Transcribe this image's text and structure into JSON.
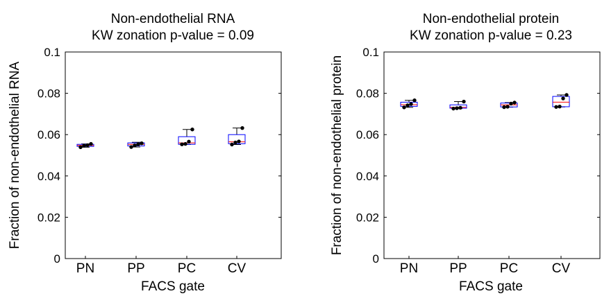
{
  "chart_data": [
    {
      "type": "box",
      "title": [
        "Non-endothelial RNA",
        "KW zonation p-value = 0.09"
      ],
      "xlabel": "FACS gate",
      "ylabel": "Fraction of non-endothelial RNA",
      "ylim": [
        0,
        0.1
      ],
      "yticks": [
        0,
        0.02,
        0.04,
        0.06,
        0.08,
        0.1
      ],
      "ytick_labels": [
        "0",
        "0.02",
        "0.04",
        "0.06",
        "0.08",
        "0.1"
      ],
      "categories": [
        "PN",
        "PP",
        "PC",
        "CV"
      ],
      "boxes": [
        {
          "q1": 0.0543,
          "median": 0.0548,
          "q3": 0.0553,
          "whisker_low": 0.0539,
          "whisker_high": 0.0555
        },
        {
          "q1": 0.0545,
          "median": 0.0553,
          "q3": 0.056,
          "whisker_low": 0.054,
          "whisker_high": 0.0563
        },
        {
          "q1": 0.0553,
          "median": 0.056,
          "q3": 0.059,
          "whisker_low": 0.0552,
          "whisker_high": 0.0625
        },
        {
          "q1": 0.0556,
          "median": 0.0565,
          "q3": 0.06,
          "whisker_low": 0.0552,
          "whisker_high": 0.0632
        }
      ],
      "points": [
        [
          0.0539,
          0.0546,
          0.0549,
          0.0555
        ],
        [
          0.054,
          0.0548,
          0.0553,
          0.0558
        ],
        [
          0.0553,
          0.0555,
          0.0566,
          0.0625
        ],
        [
          0.0552,
          0.0562,
          0.0567,
          0.0632
        ]
      ],
      "colors": {
        "box": "#0000ff",
        "median": "#ff0000",
        "whisker": "#000000",
        "points": "#000000"
      }
    },
    {
      "type": "box",
      "title": [
        "Non-endothelial protein",
        "KW zonation p-value = 0.23"
      ],
      "xlabel": "FACS gate",
      "ylabel": "Fraction of non-endothelial protein",
      "ylim": [
        0,
        0.1
      ],
      "yticks": [
        0,
        0.02,
        0.04,
        0.06,
        0.08,
        0.1
      ],
      "ytick_labels": [
        "0",
        "0.02",
        "0.04",
        "0.06",
        "0.08",
        "0.1"
      ],
      "categories": [
        "PN",
        "PP",
        "PC",
        "CV"
      ],
      "boxes": [
        {
          "q1": 0.0737,
          "median": 0.0745,
          "q3": 0.0757,
          "whisker_low": 0.0732,
          "whisker_high": 0.0766
        },
        {
          "q1": 0.0728,
          "median": 0.0732,
          "q3": 0.0744,
          "whisker_low": 0.0726,
          "whisker_high": 0.076
        },
        {
          "q1": 0.0734,
          "median": 0.0744,
          "q3": 0.0753,
          "whisker_low": 0.0733,
          "whisker_high": 0.0755
        },
        {
          "q1": 0.0735,
          "median": 0.0757,
          "q3": 0.0785,
          "whisker_low": 0.0734,
          "whisker_high": 0.0792
        }
      ],
      "points": [
        [
          0.0732,
          0.0742,
          0.0748,
          0.0766
        ],
        [
          0.0726,
          0.0728,
          0.073,
          0.076
        ],
        [
          0.0733,
          0.0735,
          0.075,
          0.0755
        ],
        [
          0.0734,
          0.0736,
          0.0775,
          0.0792
        ]
      ],
      "colors": {
        "box": "#0000ff",
        "median": "#ff0000",
        "whisker": "#000000",
        "points": "#000000"
      }
    }
  ]
}
